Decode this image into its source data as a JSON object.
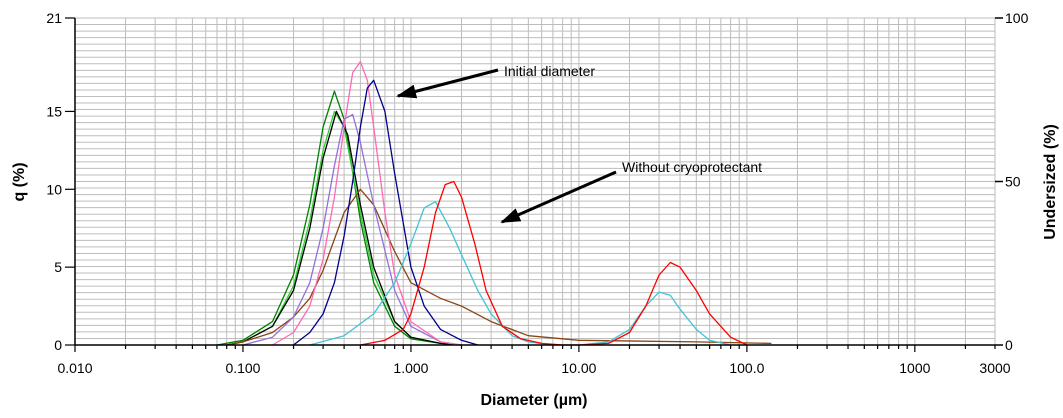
{
  "chart_data": {
    "type": "line",
    "xlabel": "Diameter (µm)",
    "ylabel_left": "q (%)",
    "ylabel_right": "Undersized (%)",
    "x_scale": "log",
    "xlim": [
      0.01,
      3000
    ],
    "ylim_left": [
      0,
      21
    ],
    "ylim_right": [
      0,
      100
    ],
    "x_ticks": [
      {
        "value": 0.01,
        "label": "0.010"
      },
      {
        "value": 0.1,
        "label": "0.100"
      },
      {
        "value": 1,
        "label": "1.000"
      },
      {
        "value": 10,
        "label": "10.00"
      },
      {
        "value": 100,
        "label": "100.0"
      },
      {
        "value": 1000,
        "label": "1000"
      },
      {
        "value": 3000,
        "label": "3000"
      }
    ],
    "y_ticks_left": [
      "0",
      "5",
      "10",
      "15",
      "21"
    ],
    "y_ticks_right": [
      "0",
      "50",
      "100"
    ],
    "grid": true,
    "annotations": [
      {
        "text": "Initial diameter"
      },
      {
        "text": "Without cryoprotectant"
      }
    ],
    "series": [
      {
        "color": "#008000",
        "x": [
          0.07,
          0.1,
          0.15,
          0.2,
          0.25,
          0.3,
          0.35,
          0.4,
          0.5,
          0.6,
          0.8,
          1.0,
          1.5,
          2.0
        ],
        "y": [
          0,
          0.3,
          1.5,
          4.5,
          9,
          14,
          16.3,
          14.5,
          8,
          4,
          1.2,
          0.4,
          0.1,
          0
        ]
      },
      {
        "color": "#32cd32",
        "x": [
          0.08,
          0.1,
          0.15,
          0.2,
          0.25,
          0.3,
          0.35,
          0.4,
          0.5,
          0.6,
          0.8,
          1.0,
          1.5,
          2.0
        ],
        "y": [
          0,
          0.2,
          1.2,
          3.8,
          8,
          12.5,
          15,
          14,
          8.5,
          4.5,
          1.5,
          0.5,
          0.1,
          0
        ]
      },
      {
        "color": "#000000",
        "x": [
          0.08,
          0.1,
          0.15,
          0.2,
          0.25,
          0.3,
          0.36,
          0.42,
          0.5,
          0.6,
          0.8,
          1.0,
          1.5,
          2.0
        ],
        "y": [
          0,
          0.2,
          1.2,
          3.5,
          7.5,
          12,
          15,
          13.5,
          9,
          5,
          1.5,
          0.5,
          0.1,
          0
        ]
      },
      {
        "color": "#8b4513",
        "x": [
          0.08,
          0.1,
          0.15,
          0.2,
          0.25,
          0.3,
          0.4,
          0.5,
          0.6,
          0.8,
          1.0,
          1.5,
          2.0,
          3.0,
          5.0,
          10,
          50,
          140
        ],
        "y": [
          0,
          0.2,
          0.8,
          1.8,
          3,
          4.8,
          8.5,
          10,
          9,
          6,
          4,
          3,
          2.5,
          1.5,
          0.6,
          0.3,
          0.2,
          0.1
        ]
      },
      {
        "color": "#9370db",
        "x": [
          0.1,
          0.15,
          0.2,
          0.25,
          0.3,
          0.35,
          0.4,
          0.45,
          0.5,
          0.6,
          0.8,
          1.0,
          1.5,
          2.0
        ],
        "y": [
          0,
          0.5,
          1.8,
          4,
          7.5,
          11.5,
          14.5,
          14.8,
          13,
          9,
          3.5,
          1.2,
          0.2,
          0
        ]
      },
      {
        "color": "#ff69b4",
        "x": [
          0.15,
          0.2,
          0.25,
          0.3,
          0.35,
          0.4,
          0.45,
          0.5,
          0.55,
          0.6,
          0.7,
          0.8,
          1.0,
          1.5,
          2.0
        ],
        "y": [
          0,
          0.8,
          2.5,
          5.5,
          9.5,
          14,
          17.5,
          18.2,
          17,
          14,
          8.5,
          4.5,
          1.5,
          0.2,
          0
        ]
      },
      {
        "color": "#00008b",
        "x": [
          0.2,
          0.25,
          0.3,
          0.35,
          0.4,
          0.45,
          0.5,
          0.55,
          0.6,
          0.7,
          0.8,
          1.0,
          1.2,
          1.5,
          2.0,
          2.5
        ],
        "y": [
          0,
          0.8,
          2,
          4,
          7,
          10.5,
          14,
          16.5,
          17,
          15,
          11,
          5,
          2.5,
          1,
          0.3,
          0
        ]
      },
      {
        "color": "#40c4d6",
        "x": [
          0.25,
          0.4,
          0.6,
          0.8,
          1.0,
          1.2,
          1.4,
          1.7,
          2.0,
          2.5,
          3.0,
          4.0,
          5.0,
          7.0,
          10,
          15,
          20,
          25,
          30,
          35,
          40,
          50,
          60,
          80
        ],
        "y": [
          0,
          0.6,
          2,
          4,
          6.5,
          8.8,
          9.2,
          7.5,
          5.8,
          3.5,
          2,
          0.6,
          0.2,
          0,
          0,
          0.2,
          1,
          2.5,
          3.4,
          3.2,
          2.3,
          1,
          0.3,
          0
        ]
      },
      {
        "color": "#ff0000",
        "x": [
          0.5,
          0.7,
          0.9,
          1.0,
          1.2,
          1.4,
          1.6,
          1.8,
          2.0,
          2.4,
          2.8,
          3.5,
          4.5,
          6.0,
          8.0,
          10,
          15,
          20,
          25,
          30,
          35,
          40,
          50,
          60,
          80,
          100
        ],
        "y": [
          0,
          0.3,
          1,
          2,
          5,
          8.5,
          10.3,
          10.5,
          9.5,
          6.5,
          3.5,
          1.2,
          0.4,
          0.1,
          0,
          0,
          0.1,
          0.8,
          2.5,
          4.5,
          5.3,
          5,
          3.5,
          2,
          0.5,
          0
        ]
      }
    ]
  }
}
